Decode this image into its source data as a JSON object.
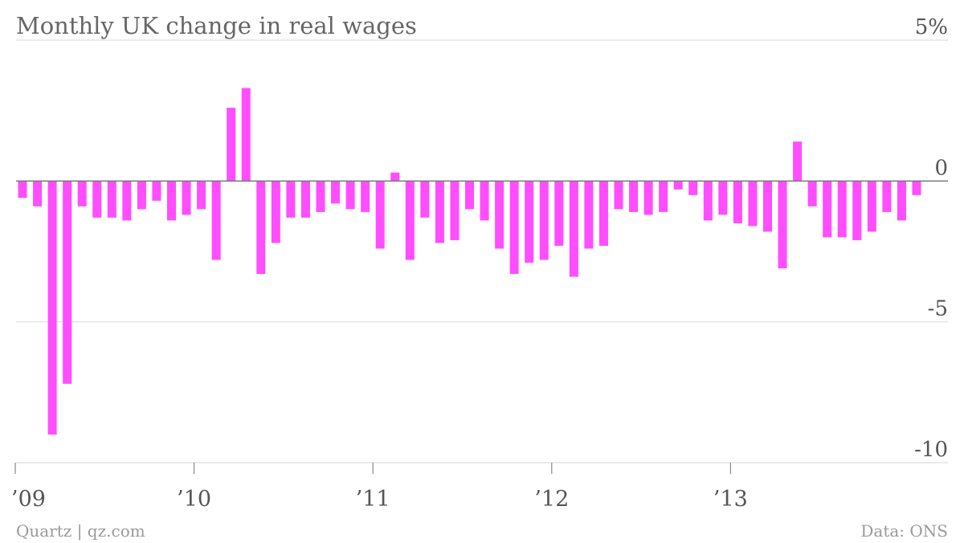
{
  "chart_data": {
    "type": "bar",
    "title": "Monthly UK change in real wages",
    "source_left": "Quartz | qz.com",
    "source_right": "Data: ONS",
    "ylim": [
      -10,
      5
    ],
    "y_ticks": [
      {
        "value": 5,
        "label": "5%"
      },
      {
        "value": 0,
        "label": "0"
      },
      {
        "value": -5,
        "label": "-5"
      },
      {
        "value": -10,
        "label": "-10"
      }
    ],
    "x_ticks": [
      {
        "index": 0,
        "label": "’09"
      },
      {
        "index": 12,
        "label": "’10"
      },
      {
        "index": 24,
        "label": "’11"
      },
      {
        "index": 36,
        "label": "’12"
      },
      {
        "index": 48,
        "label": "’13"
      }
    ],
    "bar_color": "#ff4dff",
    "grid": true,
    "categories": [
      "2009-01",
      "2009-02",
      "2009-03",
      "2009-04",
      "2009-05",
      "2009-06",
      "2009-07",
      "2009-08",
      "2009-09",
      "2009-10",
      "2009-11",
      "2009-12",
      "2010-01",
      "2010-02",
      "2010-03",
      "2010-04",
      "2010-05",
      "2010-06",
      "2010-07",
      "2010-08",
      "2010-09",
      "2010-10",
      "2010-11",
      "2010-12",
      "2011-01",
      "2011-02",
      "2011-03",
      "2011-04",
      "2011-05",
      "2011-06",
      "2011-07",
      "2011-08",
      "2011-09",
      "2011-10",
      "2011-11",
      "2011-12",
      "2012-01",
      "2012-02",
      "2012-03",
      "2012-04",
      "2012-05",
      "2012-06",
      "2012-07",
      "2012-08",
      "2012-09",
      "2012-10",
      "2012-11",
      "2012-12",
      "2013-01",
      "2013-02",
      "2013-03",
      "2013-04",
      "2013-05",
      "2013-06",
      "2013-07",
      "2013-08",
      "2013-09",
      "2013-10",
      "2013-11",
      "2013-12",
      "2014-01"
    ],
    "values": [
      -0.6,
      -0.9,
      -9.0,
      -7.2,
      -0.9,
      -1.3,
      -1.3,
      -1.4,
      -1.0,
      -0.7,
      -1.4,
      -1.2,
      -1.0,
      -2.8,
      2.6,
      3.3,
      -3.3,
      -2.2,
      -1.3,
      -1.3,
      -1.1,
      -0.8,
      -1.0,
      -1.1,
      -2.4,
      0.3,
      -2.8,
      -1.3,
      -2.2,
      -2.1,
      -1.0,
      -1.4,
      -2.4,
      -3.3,
      -2.9,
      -2.8,
      -2.3,
      -3.4,
      -2.4,
      -2.3,
      -1.0,
      -1.1,
      -1.2,
      -1.1,
      -0.3,
      -0.5,
      -1.4,
      -1.2,
      -1.5,
      -1.6,
      -1.8,
      -3.1,
      1.4,
      -0.9,
      -2.0,
      -2.0,
      -2.1,
      -1.8,
      -1.1,
      -1.4,
      -0.5
    ]
  }
}
